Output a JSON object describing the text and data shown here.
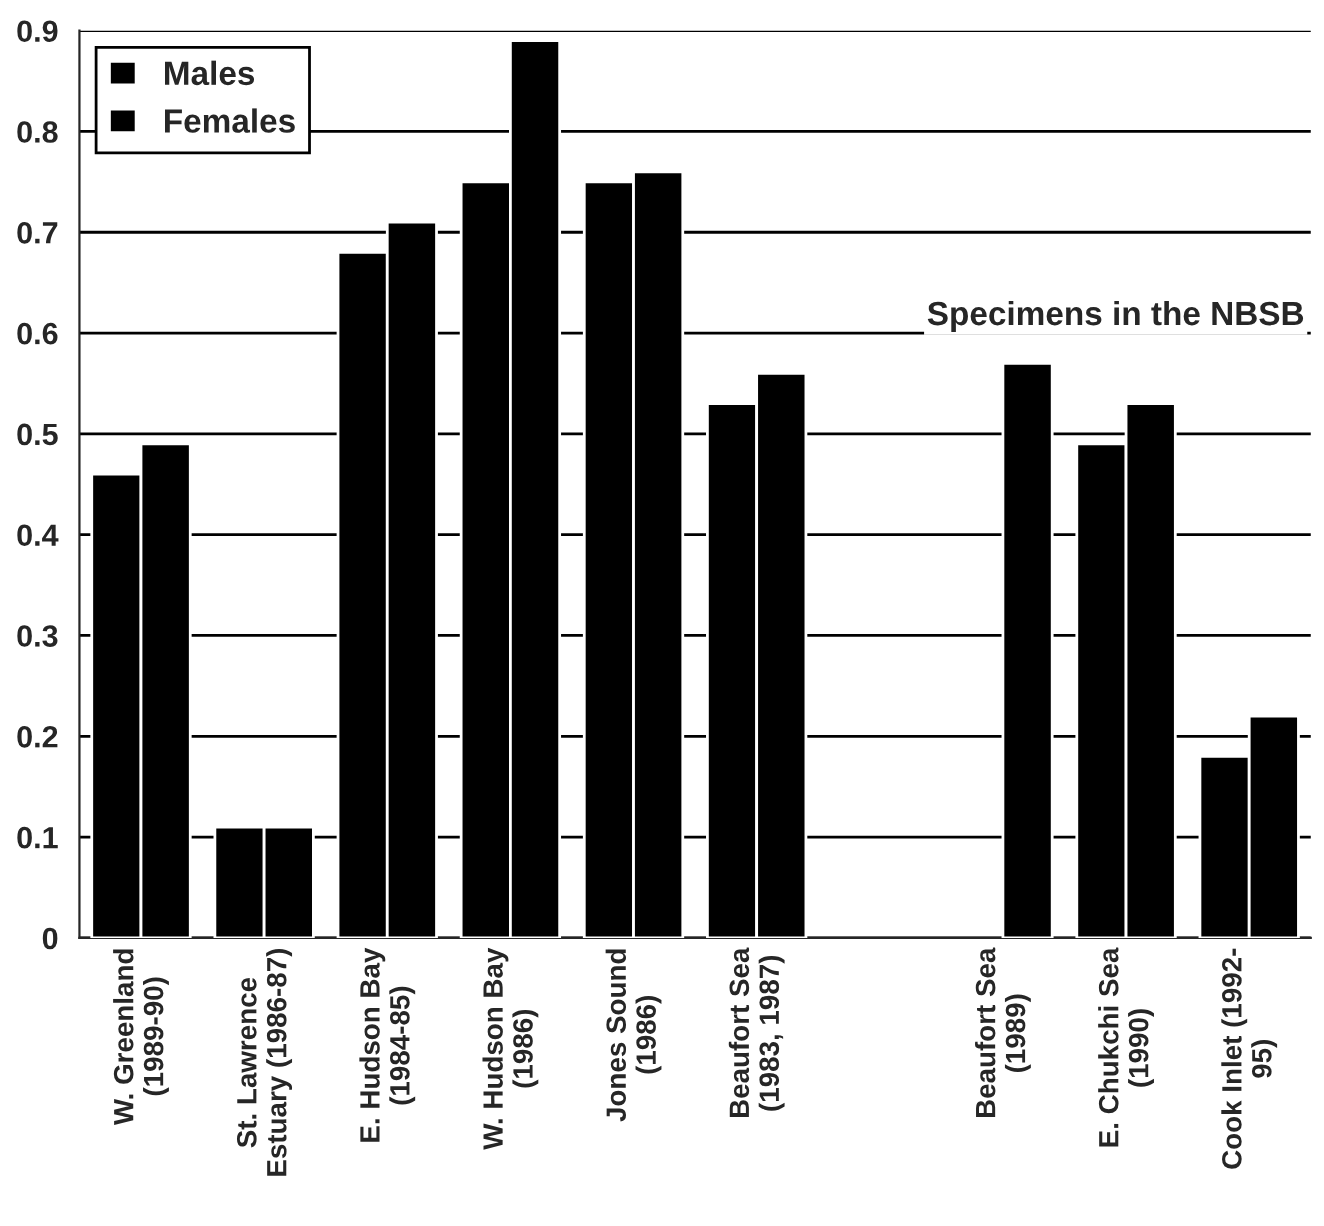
{
  "chart_data": {
    "type": "bar",
    "categories": [
      "W. Greenland\n(1989-90)",
      "St. Lawrence\nEstuary (1986-87)",
      "E. Hudson Bay\n(1984-85)",
      "W. Hudson Bay\n(1986)",
      "Jones Sound\n(1986)",
      "Beaufort Sea\n(1983, 1987)",
      null,
      "Beaufort Sea\n(1989)",
      "E. Chukchi Sea\n(1990)",
      "Cook Inlet (1992-\n95)"
    ],
    "series": [
      {
        "name": "Males",
        "color": "#000000",
        "values": [
          0.46,
          0.11,
          0.68,
          0.75,
          0.75,
          0.53,
          null,
          null,
          0.49,
          0.18
        ]
      },
      {
        "name": "Females",
        "color": "#000000",
        "values": [
          0.49,
          0.11,
          0.71,
          0.89,
          0.76,
          0.56,
          null,
          0.57,
          0.53,
          0.22
        ]
      }
    ],
    "ylim": [
      0,
      0.9
    ],
    "yticks": [
      0,
      0.1,
      0.2,
      0.3,
      0.4,
      0.5,
      0.6,
      0.7,
      0.8,
      0.9
    ],
    "annotations": [
      "Specimens in the NBSB"
    ],
    "grid": "y",
    "legend": "top left"
  }
}
